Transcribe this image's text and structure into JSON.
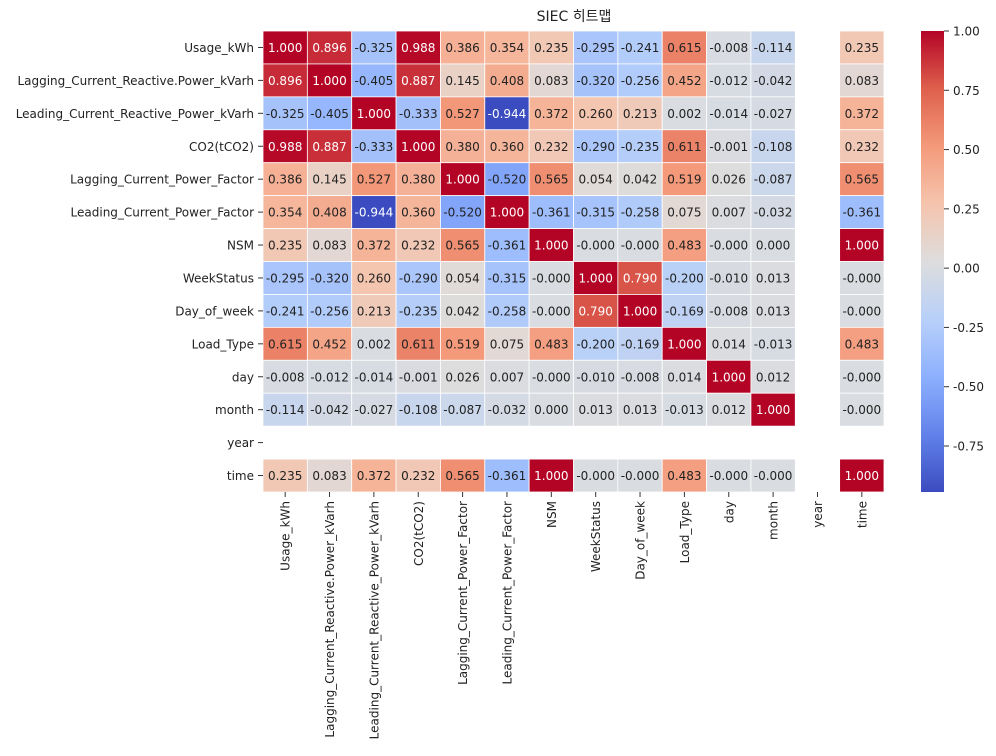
{
  "chart_data": {
    "type": "heatmap",
    "title": "SIEC 히트맵",
    "rows": [
      "Usage_kWh",
      "Lagging_Current_Reactive.Power_kVarh",
      "Leading_Current_Reactive_Power_kVarh",
      "CO2(tCO2)",
      "Lagging_Current_Power_Factor",
      "Leading_Current_Power_Factor",
      "NSM",
      "WeekStatus",
      "Day_of_week",
      "Load_Type",
      "day",
      "month",
      "year",
      "time"
    ],
    "columns": [
      "Usage_kWh",
      "Lagging_Current_Reactive.Power_kVarh",
      "Leading_Current_Reactive_Power_kVarh",
      "CO2(tCO2)",
      "Lagging_Current_Power_Factor",
      "Leading_Current_Power_Factor",
      "NSM",
      "WeekStatus",
      "Day_of_week",
      "Load_Type",
      "day",
      "month",
      "year",
      "time"
    ],
    "values": [
      [
        "1.000",
        "0.896",
        "-0.325",
        "0.988",
        "0.386",
        "0.354",
        "0.235",
        "-0.295",
        "-0.241",
        "0.615",
        "-0.008",
        "-0.114",
        null,
        "0.235"
      ],
      [
        "0.896",
        "1.000",
        "-0.405",
        "0.887",
        "0.145",
        "0.408",
        "0.083",
        "-0.320",
        "-0.256",
        "0.452",
        "-0.012",
        "-0.042",
        null,
        "0.083"
      ],
      [
        "-0.325",
        "-0.405",
        "1.000",
        "-0.333",
        "0.527",
        "-0.944",
        "0.372",
        "0.260",
        "0.213",
        "0.002",
        "-0.014",
        "-0.027",
        null,
        "0.372"
      ],
      [
        "0.988",
        "0.887",
        "-0.333",
        "1.000",
        "0.380",
        "0.360",
        "0.232",
        "-0.290",
        "-0.235",
        "0.611",
        "-0.001",
        "-0.108",
        null,
        "0.232"
      ],
      [
        "0.386",
        "0.145",
        "0.527",
        "0.380",
        "1.000",
        "-0.520",
        "0.565",
        "0.054",
        "0.042",
        "0.519",
        "0.026",
        "-0.087",
        null,
        "0.565"
      ],
      [
        "0.354",
        "0.408",
        "-0.944",
        "0.360",
        "-0.520",
        "1.000",
        "-0.361",
        "-0.315",
        "-0.258",
        "0.075",
        "0.007",
        "-0.032",
        null,
        "-0.361"
      ],
      [
        "0.235",
        "0.083",
        "0.372",
        "0.232",
        "0.565",
        "-0.361",
        "1.000",
        "-0.000",
        "-0.000",
        "0.483",
        "-0.000",
        "0.000",
        null,
        "1.000"
      ],
      [
        "-0.295",
        "-0.320",
        "0.260",
        "-0.290",
        "0.054",
        "-0.315",
        "-0.000",
        "1.000",
        "0.790",
        "-0.200",
        "-0.010",
        "0.013",
        null,
        "-0.000"
      ],
      [
        "-0.241",
        "-0.256",
        "0.213",
        "-0.235",
        "0.042",
        "-0.258",
        "-0.000",
        "0.790",
        "1.000",
        "-0.169",
        "-0.008",
        "0.013",
        null,
        "-0.000"
      ],
      [
        "0.615",
        "0.452",
        "0.002",
        "0.611",
        "0.519",
        "0.075",
        "0.483",
        "-0.200",
        "-0.169",
        "1.000",
        "0.014",
        "-0.013",
        null,
        "0.483"
      ],
      [
        "-0.008",
        "-0.012",
        "-0.014",
        "-0.001",
        "0.026",
        "0.007",
        "-0.000",
        "-0.010",
        "-0.008",
        "0.014",
        "1.000",
        "0.012",
        null,
        "-0.000"
      ],
      [
        "-0.114",
        "-0.042",
        "-0.027",
        "-0.108",
        "-0.087",
        "-0.032",
        "0.000",
        "0.013",
        "0.013",
        "-0.013",
        "0.012",
        "1.000",
        null,
        "-0.000"
      ],
      [
        null,
        null,
        null,
        null,
        null,
        null,
        null,
        null,
        null,
        null,
        null,
        null,
        null,
        null
      ],
      [
        "0.235",
        "0.083",
        "0.372",
        "0.232",
        "0.565",
        "-0.361",
        "1.000",
        "-0.000",
        "-0.000",
        "0.483",
        "-0.000",
        "-0.000",
        null,
        "1.000"
      ]
    ],
    "colormap": "coolwarm",
    "color_range": [
      -0.944,
      1.0
    ],
    "colorbar_ticks": [
      "1.00",
      "0.75",
      "0.50",
      "0.25",
      "0.00",
      "-0.25",
      "-0.50",
      "-0.75"
    ],
    "grid": false,
    "cell_border_color": "#ffffff"
  }
}
